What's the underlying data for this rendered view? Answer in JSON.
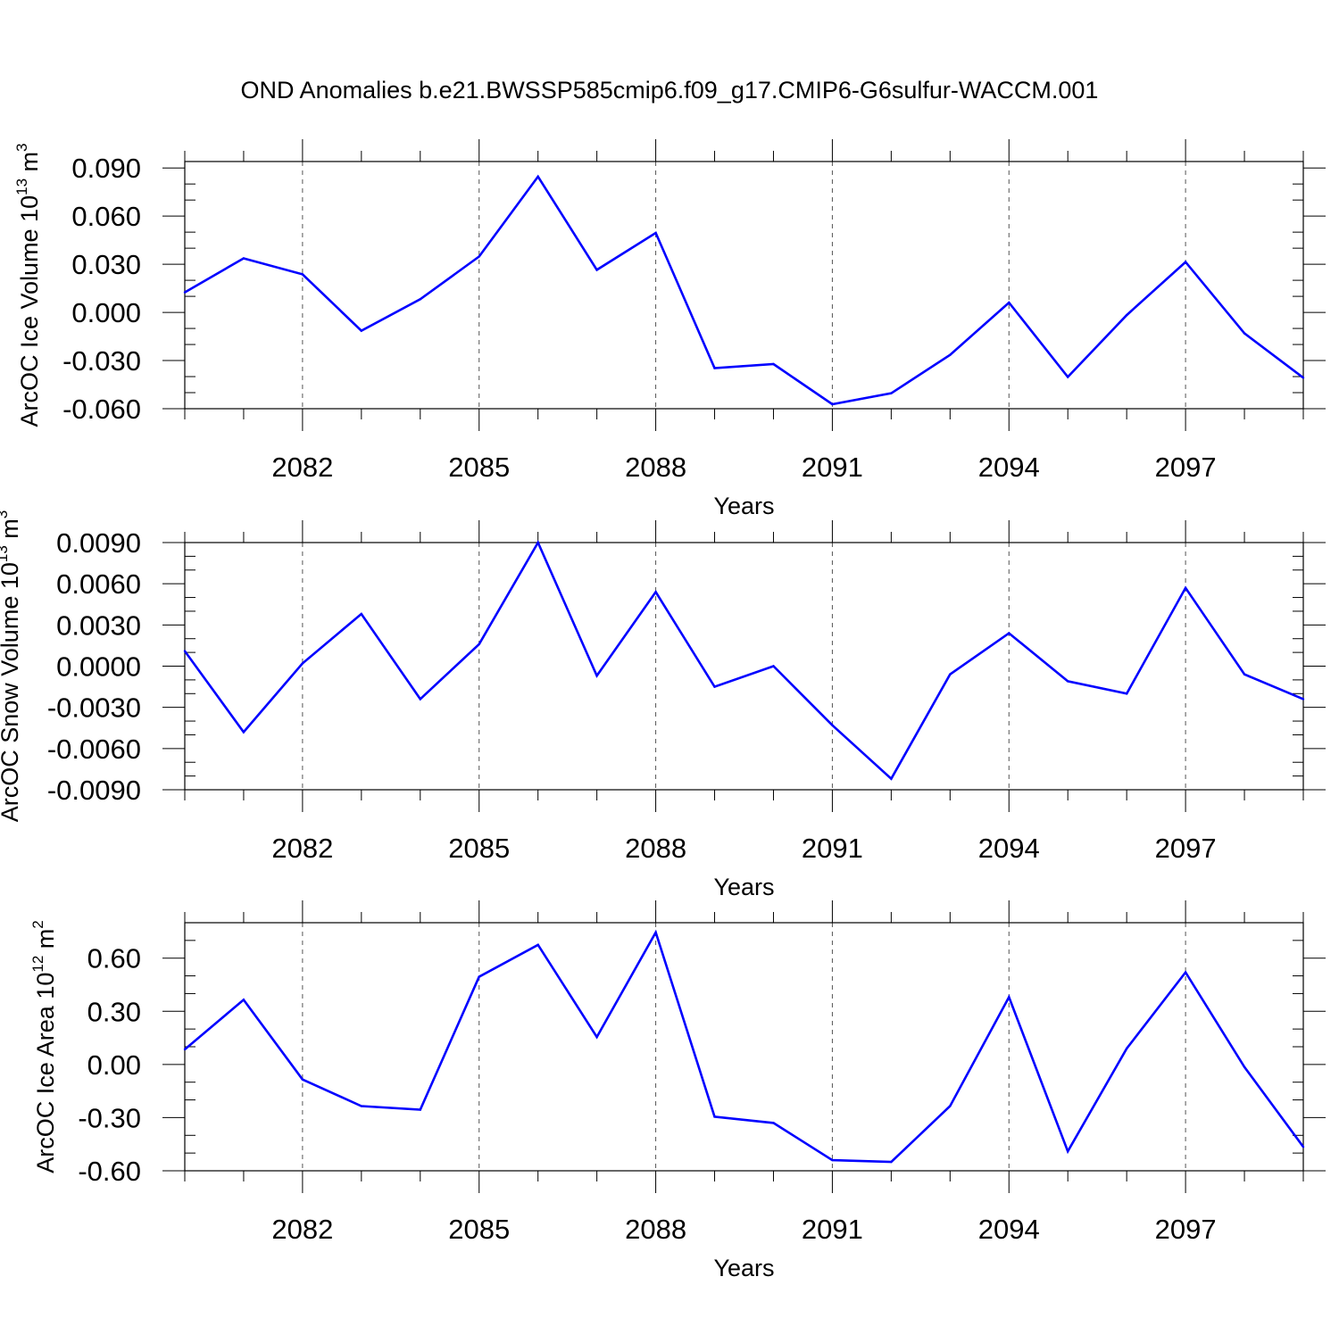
{
  "title": "OND Anomalies b.e21.BWSSP585cmip6.f09_g17.CMIP6-G6sulfur-WACCM.001",
  "colors": {
    "series": "#0000ff",
    "axis": "#000000",
    "grid": "#555555"
  },
  "chart_data": [
    {
      "type": "line",
      "ylabel": "ArcOC Ice Volume 10",
      "ylabel_exp": "13",
      "ylabel_unit": " m",
      "ylabel_unit_exp": "3",
      "xlabel": "Years",
      "xlim": [
        2080,
        2099
      ],
      "ylim": [
        -0.06,
        0.094
      ],
      "yticks": [
        -0.06,
        -0.03,
        0.0,
        0.03,
        0.06,
        0.09
      ],
      "ytick_labels": [
        "-0.060",
        "-0.030",
        "0.000",
        "0.030",
        "0.060",
        "0.090"
      ],
      "xticks": [
        2082,
        2085,
        2088,
        2091,
        2094,
        2097
      ],
      "xtick_labels": [
        "2082",
        "2085",
        "2088",
        "2091",
        "2094",
        "2097"
      ],
      "grid": "x-dashed",
      "x": [
        2080,
        2081,
        2082,
        2083,
        2084,
        2085,
        2086,
        2087,
        2088,
        2089,
        2090,
        2091,
        2092,
        2093,
        2094,
        2095,
        2096,
        2097,
        2098,
        2099
      ],
      "values": [
        0.0125,
        0.0337,
        0.0237,
        -0.0114,
        0.0082,
        0.0348,
        0.0846,
        0.0265,
        0.0495,
        -0.0347,
        -0.0322,
        -0.0572,
        -0.0504,
        -0.0265,
        0.0061,
        -0.0402,
        -0.0017,
        0.0314,
        -0.0131,
        -0.0407
      ]
    },
    {
      "type": "line",
      "ylabel": "ArcOC Snow Volume 10",
      "ylabel_exp": "13",
      "ylabel_unit": " m",
      "ylabel_unit_exp": "3",
      "xlabel": "Years",
      "xlim": [
        2080,
        2099
      ],
      "ylim": [
        -0.009,
        0.009
      ],
      "yticks": [
        -0.009,
        -0.006,
        -0.003,
        0.0,
        0.003,
        0.006,
        0.009
      ],
      "ytick_labels": [
        "-0.0090",
        "-0.0060",
        "-0.0030",
        "0.0000",
        "0.0030",
        "0.0060",
        "0.0090"
      ],
      "xticks": [
        2082,
        2085,
        2088,
        2091,
        2094,
        2097
      ],
      "xtick_labels": [
        "2082",
        "2085",
        "2088",
        "2091",
        "2094",
        "2097"
      ],
      "grid": "x-dashed",
      "x": [
        2080,
        2081,
        2082,
        2083,
        2084,
        2085,
        2086,
        2087,
        2088,
        2089,
        2090,
        2091,
        2092,
        2093,
        2094,
        2095,
        2096,
        2097,
        2098,
        2099
      ],
      "values": [
        0.0011,
        -0.0048,
        0.0002,
        0.0038,
        -0.0024,
        0.0016,
        0.009,
        -0.0007,
        0.0054,
        -0.0015,
        0.0,
        -0.0043,
        -0.0082,
        -0.0006,
        0.0024,
        -0.0011,
        -0.002,
        0.0057,
        -0.0006,
        -0.0024
      ]
    },
    {
      "type": "line",
      "ylabel": "ArcOC Ice Area 10",
      "ylabel_exp": "12",
      "ylabel_unit": " m",
      "ylabel_unit_exp": "2",
      "xlabel": "Years",
      "xlim": [
        2080,
        2099
      ],
      "ylim": [
        -0.6,
        0.8
      ],
      "yticks": [
        -0.6,
        -0.3,
        0.0,
        0.3,
        0.6
      ],
      "ytick_labels": [
        "-0.60",
        "-0.30",
        "0.00",
        "0.30",
        "0.60"
      ],
      "xticks": [
        2082,
        2085,
        2088,
        2091,
        2094,
        2097
      ],
      "xtick_labels": [
        "2082",
        "2085",
        "2088",
        "2091",
        "2094",
        "2097"
      ],
      "grid": "x-dashed",
      "x": [
        2080,
        2081,
        2082,
        2083,
        2084,
        2085,
        2086,
        2087,
        2088,
        2089,
        2090,
        2091,
        2092,
        2093,
        2094,
        2095,
        2096,
        2097,
        2098,
        2099
      ],
      "values": [
        0.085,
        0.365,
        -0.085,
        -0.235,
        -0.255,
        0.495,
        0.675,
        0.155,
        0.745,
        -0.295,
        -0.33,
        -0.54,
        -0.55,
        -0.235,
        0.38,
        -0.49,
        0.09,
        0.52,
        -0.015,
        -0.465
      ]
    }
  ]
}
